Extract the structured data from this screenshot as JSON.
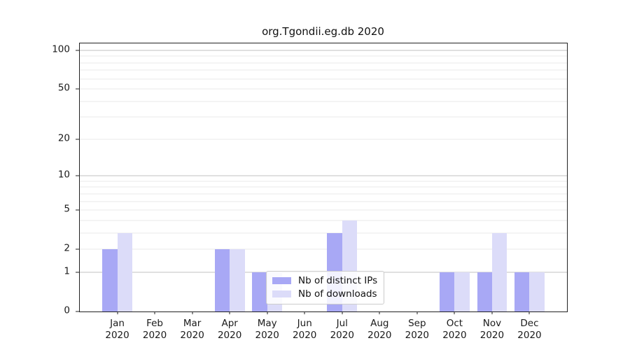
{
  "chart_data": {
    "type": "bar",
    "title": "org.Tgondii.eg.db 2020",
    "months": [
      "Jan",
      "Feb",
      "Mar",
      "Apr",
      "May",
      "Jun",
      "Jul",
      "Aug",
      "Sep",
      "Oct",
      "Nov",
      "Dec"
    ],
    "year": "2020",
    "series": [
      {
        "name": "Nb of distinct IPs",
        "color": "#a8a8f5",
        "values": [
          2,
          0,
          0,
          2,
          1,
          0,
          3,
          0,
          0,
          1,
          1,
          1
        ]
      },
      {
        "name": "Nb of downloads",
        "color": "#dcdcf9",
        "values": [
          3,
          0,
          0,
          2,
          1,
          0,
          4,
          0,
          0,
          1,
          3,
          1
        ]
      }
    ],
    "yscale": "log1p",
    "ylim": [
      0,
      113
    ],
    "yticks": [
      0,
      1,
      2,
      5,
      10,
      20,
      50,
      100
    ],
    "gridlines": {
      "minor": [
        2,
        3,
        4,
        5,
        6,
        7,
        8,
        9,
        20,
        30,
        40,
        50,
        60,
        70,
        80,
        90
      ],
      "major": [
        1,
        10,
        100
      ]
    },
    "bar_width_fraction": 0.4,
    "legend_position": "lower center",
    "axis_color": "#222222",
    "grid_minor_color": "#e9e9e9",
    "grid_major_color": "#c2c2c2"
  }
}
